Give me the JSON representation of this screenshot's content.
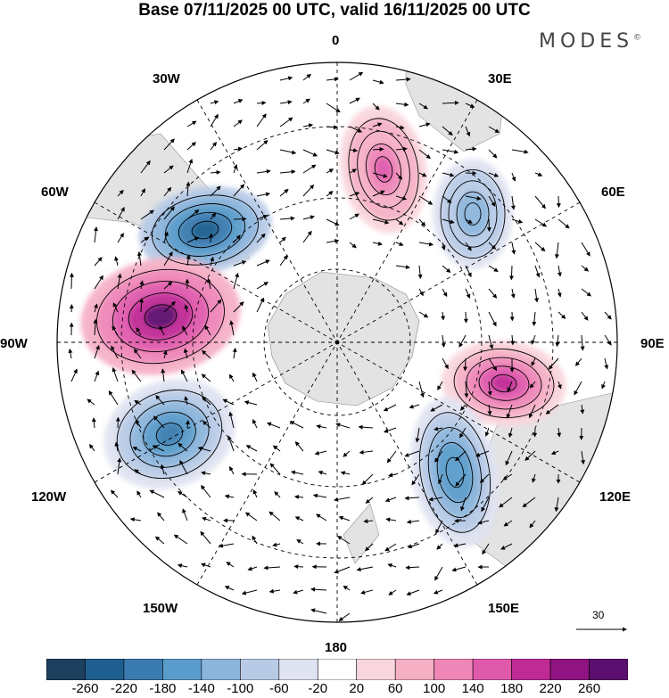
{
  "title": "Base 07/11/2025 00 UTC, valid 16/11/2025 00 UTC",
  "brand": "MODES",
  "brand_mark": "©",
  "map": {
    "projection": "south-polar-stereographic",
    "longitude_labels": {
      "top": "0",
      "bottom": "180",
      "left": "90W",
      "right": "90E",
      "upper_left_1": "30W",
      "upper_left_2": "60W",
      "lower_left_1": "120W",
      "lower_left_2": "150W",
      "upper_right_1": "30E",
      "upper_right_2": "60E",
      "lower_right_1": "120E",
      "lower_right_2": "150E"
    },
    "anomaly_centres": [
      {
        "id": "atl-low",
        "value": -240,
        "color": "#26506f"
      },
      {
        "id": "sepac-high",
        "value": 260,
        "color": "#5b0f6e"
      },
      {
        "id": "spac-low",
        "value": -220,
        "color": "#26506f"
      },
      {
        "id": "ind-high",
        "value": 180,
        "color": "#b0258c"
      },
      {
        "id": "tas-low",
        "value": -180,
        "color": "#3a7bb0"
      },
      {
        "id": "sio-low",
        "value": -140,
        "color": "#5a9ccb"
      },
      {
        "id": "sa-high",
        "value": 140,
        "color": "#d94fa6"
      }
    ],
    "wind_reference_value": "30"
  },
  "colorbar": {
    "colors": [
      "#1c3f5e",
      "#1f5f8f",
      "#3a7bb0",
      "#5a9ccb",
      "#8cb5dc",
      "#b8cbe6",
      "#e0e3f1",
      "#ffffff",
      "#f9d5dd",
      "#f5b0c6",
      "#ef86b8",
      "#e05aac",
      "#c02a95",
      "#8f1380",
      "#5b0f6e"
    ],
    "ticks": [
      "-260",
      "-220",
      "-180",
      "-140",
      "-100",
      "-60",
      "-20",
      "20",
      "60",
      "100",
      "140",
      "180",
      "220",
      "260"
    ]
  }
}
